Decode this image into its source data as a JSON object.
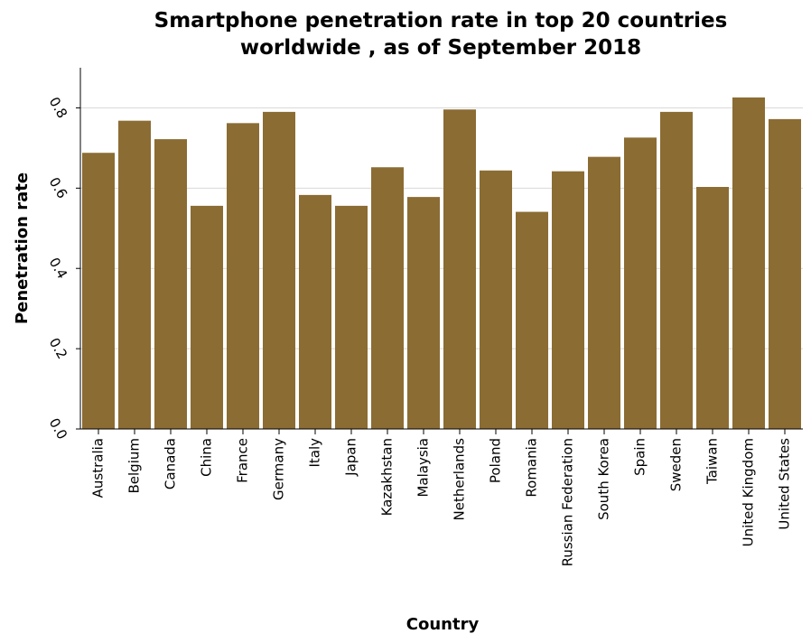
{
  "chart_data": {
    "type": "bar",
    "title_lines": [
      "Smartphone penetration rate in top 20 countries",
      "worldwide , as of September 2018"
    ],
    "xlabel": "Country",
    "ylabel": "Penetration rate",
    "categories": [
      "Australia",
      "Belgium",
      "Canada",
      "China",
      "France",
      "Germany",
      "Italy",
      "Japan",
      "Kazakhstan",
      "Malaysia",
      "Netherlands",
      "Poland",
      "Romania",
      "Russian Federation",
      "South Korea",
      "Spain",
      "Sweden",
      "Taiwan",
      "United Kingdom",
      "United States"
    ],
    "values": [
      0.688,
      0.768,
      0.722,
      0.556,
      0.762,
      0.79,
      0.583,
      0.556,
      0.652,
      0.578,
      0.796,
      0.644,
      0.541,
      0.642,
      0.678,
      0.726,
      0.79,
      0.603,
      0.826,
      0.772
    ],
    "ylim": [
      0,
      0.9
    ],
    "yticks": [
      "0.0",
      "0.2",
      "0.4",
      "0.6",
      "0.8"
    ],
    "ytick_values": [
      0,
      0.2,
      0.4,
      0.6,
      0.8
    ],
    "grid": true,
    "bar_color": "#8b6c33",
    "grid_color": "#d9d9d9"
  }
}
